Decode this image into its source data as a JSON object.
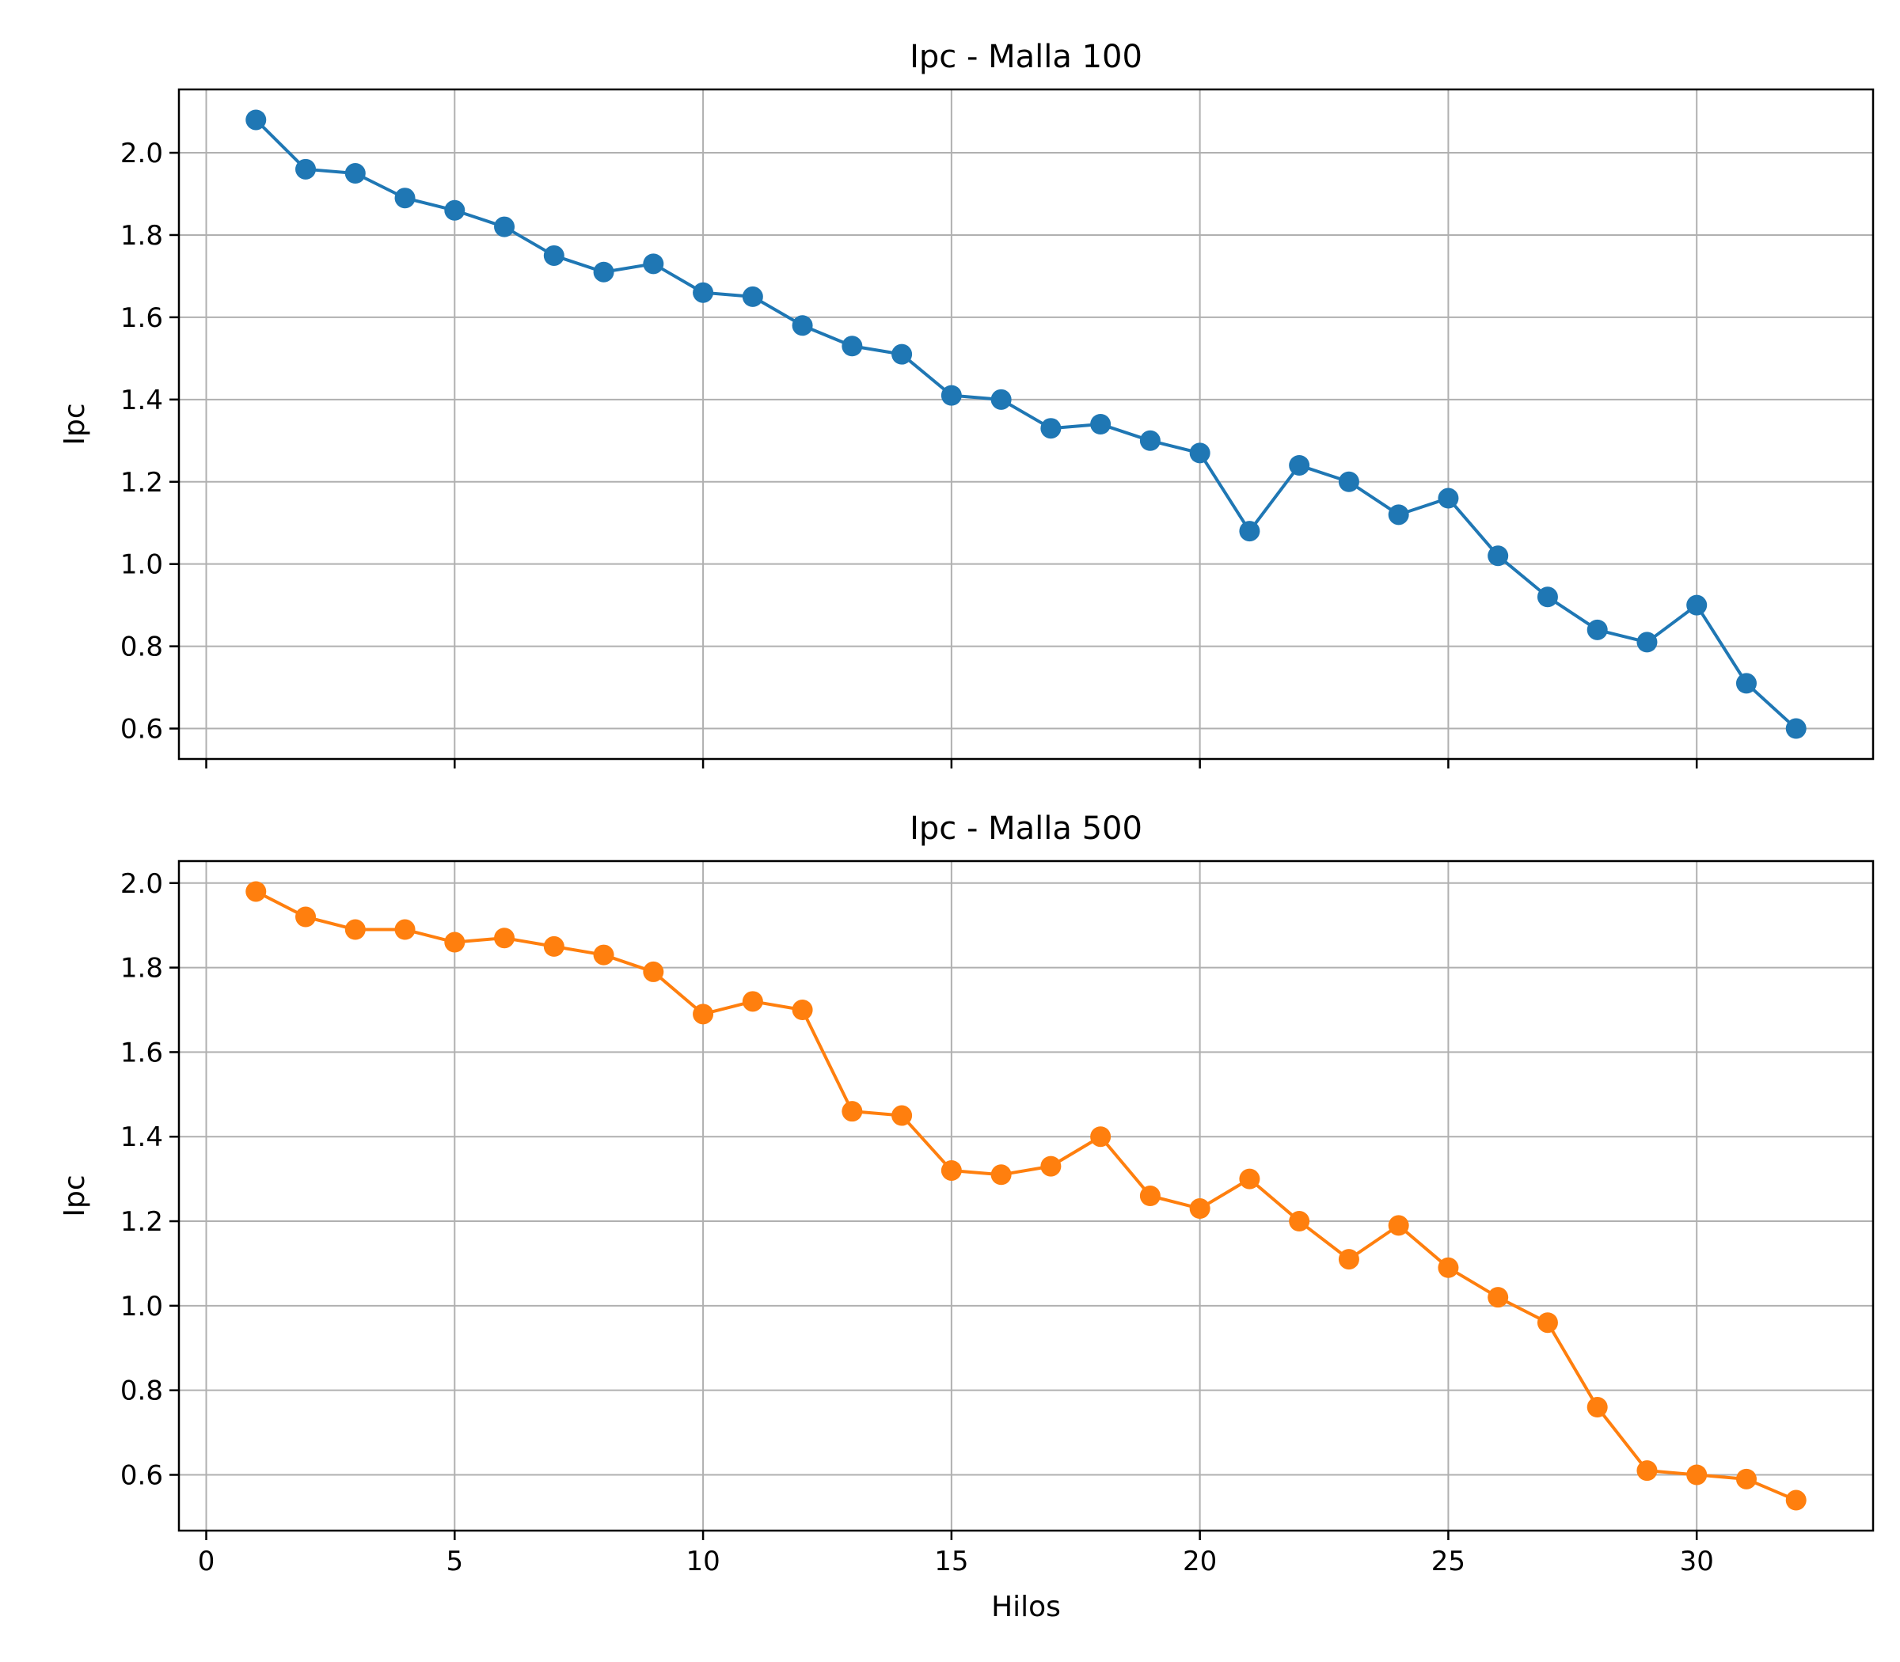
{
  "chart_data": [
    {
      "type": "line",
      "title": "Ipc - Malla 100",
      "xlabel": "",
      "ylabel": "Ipc",
      "xlim": [
        -0.55,
        33.55
      ],
      "ylim": [
        0.526,
        2.154
      ],
      "xticks": [
        0,
        5,
        10,
        15,
        20,
        25,
        30
      ],
      "xtick_labels_visible": false,
      "yticks": [
        0.6,
        0.8,
        1.0,
        1.2,
        1.4,
        1.6,
        1.8,
        2.0
      ],
      "grid": true,
      "marker": "circle",
      "series": [
        {
          "color": "#1f77b4",
          "x": [
            1,
            2,
            3,
            4,
            5,
            6,
            7,
            8,
            9,
            10,
            11,
            12,
            13,
            14,
            15,
            16,
            17,
            18,
            19,
            20,
            21,
            22,
            23,
            24,
            25,
            26,
            27,
            28,
            29,
            30,
            31,
            32
          ],
          "y": [
            2.08,
            1.96,
            1.95,
            1.89,
            1.86,
            1.82,
            1.75,
            1.71,
            1.73,
            1.66,
            1.65,
            1.58,
            1.53,
            1.51,
            1.41,
            1.4,
            1.33,
            1.34,
            1.3,
            1.27,
            1.08,
            1.24,
            1.2,
            1.12,
            1.16,
            1.02,
            0.92,
            0.84,
            0.81,
            0.9,
            0.71,
            0.6
          ]
        }
      ]
    },
    {
      "type": "line",
      "title": "Ipc - Malla 500",
      "xlabel": "Hilos",
      "ylabel": "Ipc",
      "xlim": [
        -0.55,
        33.55
      ],
      "ylim": [
        0.468,
        2.052
      ],
      "xticks": [
        0,
        5,
        10,
        15,
        20,
        25,
        30
      ],
      "xtick_labels_visible": true,
      "yticks": [
        0.6,
        0.8,
        1.0,
        1.2,
        1.4,
        1.6,
        1.8,
        2.0
      ],
      "grid": true,
      "marker": "circle",
      "series": [
        {
          "color": "#ff7f0e",
          "x": [
            1,
            2,
            3,
            4,
            5,
            6,
            7,
            8,
            9,
            10,
            11,
            12,
            13,
            14,
            15,
            16,
            17,
            18,
            19,
            20,
            21,
            22,
            23,
            24,
            25,
            26,
            27,
            28,
            29,
            30,
            31,
            32
          ],
          "y": [
            1.98,
            1.92,
            1.89,
            1.89,
            1.86,
            1.87,
            1.85,
            1.83,
            1.79,
            1.69,
            1.72,
            1.7,
            1.46,
            1.45,
            1.32,
            1.31,
            1.33,
            1.4,
            1.26,
            1.23,
            1.3,
            1.2,
            1.11,
            1.19,
            1.09,
            1.02,
            0.96,
            0.76,
            0.61,
            0.6,
            0.59,
            0.54
          ]
        }
      ]
    }
  ]
}
